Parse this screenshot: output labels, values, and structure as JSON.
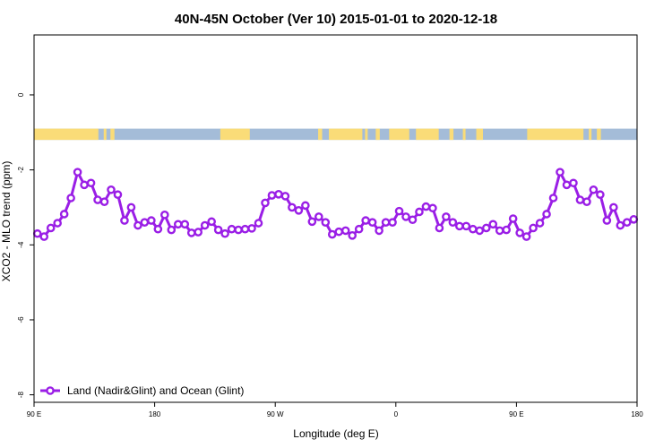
{
  "chart_data": {
    "type": "line",
    "title": "40N-45N October (Ver 10)   2015-01-01 to 2020-12-18",
    "xlabel": "Longitude (deg E)",
    "ylabel": "XCO2 - MLO trend (ppm)",
    "xlim": [
      90,
      540
    ],
    "ylim": [
      -8.2,
      1.6
    ],
    "x_ticks": [
      {
        "value": 90,
        "label": "90 E"
      },
      {
        "value": 180,
        "label": "180"
      },
      {
        "value": 270,
        "label": "90 W"
      },
      {
        "value": 360,
        "label": "0"
      },
      {
        "value": 450,
        "label": "90 E"
      },
      {
        "value": 540,
        "label": "180"
      }
    ],
    "y_ticks": [
      0,
      -2,
      -4,
      -6,
      -8
    ],
    "grid": false,
    "legend_position": "bottom-left",
    "land_ocean_strip": {
      "y_range": [
        -1.2,
        -0.9
      ],
      "ocean_color": "#a4bcd8",
      "land_color": "#fadc78",
      "land_segments": [
        [
          90,
          138
        ],
        [
          142,
          144
        ],
        [
          147,
          150
        ],
        [
          229,
          251
        ],
        [
          302,
          305
        ],
        [
          310,
          335
        ],
        [
          337,
          339
        ],
        [
          345,
          348
        ],
        [
          355,
          370
        ],
        [
          375,
          392
        ],
        [
          400,
          403
        ],
        [
          410,
          412
        ],
        [
          420,
          425
        ],
        [
          458,
          500
        ],
        [
          504,
          506
        ],
        [
          510,
          513
        ]
      ]
    },
    "series": [
      {
        "name": "Land (Nadir&Glint) and Ocean (Glint)",
        "color": "#9a1ee6",
        "x": [
          92.5,
          97.5,
          102.5,
          107.5,
          112.5,
          117.5,
          122.5,
          127.5,
          132.5,
          137.5,
          142.5,
          147.5,
          152.5,
          157.5,
          162.5,
          167.5,
          172.5,
          177.5,
          182.5,
          187.5,
          192.5,
          197.5,
          202.5,
          207.5,
          212.5,
          217.5,
          222.5,
          227.5,
          232.5,
          237.5,
          242.5,
          247.5,
          252.5,
          257.5,
          262.5,
          267.5,
          272.5,
          277.5,
          282.5,
          287.5,
          292.5,
          297.5,
          302.5,
          307.5,
          312.5,
          317.5,
          322.5,
          327.5,
          332.5,
          337.5,
          342.5,
          347.5,
          352.5,
          357.5,
          362.5,
          367.5,
          372.5,
          377.5,
          382.5,
          387.5,
          392.5,
          397.5,
          402.5,
          407.5,
          412.5,
          417.5,
          422.5,
          427.5,
          432.5,
          437.5,
          442.5,
          447.5,
          452.5,
          457.5,
          462.5,
          467.5,
          472.5,
          477.5,
          482.5,
          487.5,
          492.5,
          497.5,
          502.5,
          507.5,
          512.5,
          517.5,
          522.5,
          527.5,
          532.5,
          537.5
        ],
        "values": [
          -3.7,
          -3.78,
          -3.55,
          -3.42,
          -3.18,
          -2.75,
          -2.06,
          -2.4,
          -2.35,
          -2.8,
          -2.85,
          -2.53,
          -2.66,
          -3.35,
          -3.0,
          -3.48,
          -3.4,
          -3.35,
          -3.58,
          -3.2,
          -3.6,
          -3.45,
          -3.45,
          -3.68,
          -3.66,
          -3.48,
          -3.38,
          -3.6,
          -3.7,
          -3.58,
          -3.6,
          -3.58,
          -3.56,
          -3.42,
          -2.88,
          -2.68,
          -2.65,
          -2.7,
          -3.0,
          -3.08,
          -2.95,
          -3.38,
          -3.25,
          -3.4,
          -3.72,
          -3.65,
          -3.62,
          -3.75,
          -3.58,
          -3.35,
          -3.4,
          -3.62,
          -3.4,
          -3.4,
          -3.1,
          -3.25,
          -3.33,
          -3.12,
          -2.98,
          -3.02,
          -3.55,
          -3.25,
          -3.4,
          -3.5,
          -3.5,
          -3.58,
          -3.62,
          -3.55,
          -3.45,
          -3.62,
          -3.6,
          -3.3,
          -3.68,
          -3.78,
          -3.55,
          -3.42,
          -3.18,
          -2.75,
          -2.06,
          -2.4,
          -2.35,
          -2.8,
          -2.85,
          -2.53,
          -2.66,
          -3.35,
          -3.0,
          -3.48,
          -3.4,
          -3.32
        ]
      }
    ]
  }
}
